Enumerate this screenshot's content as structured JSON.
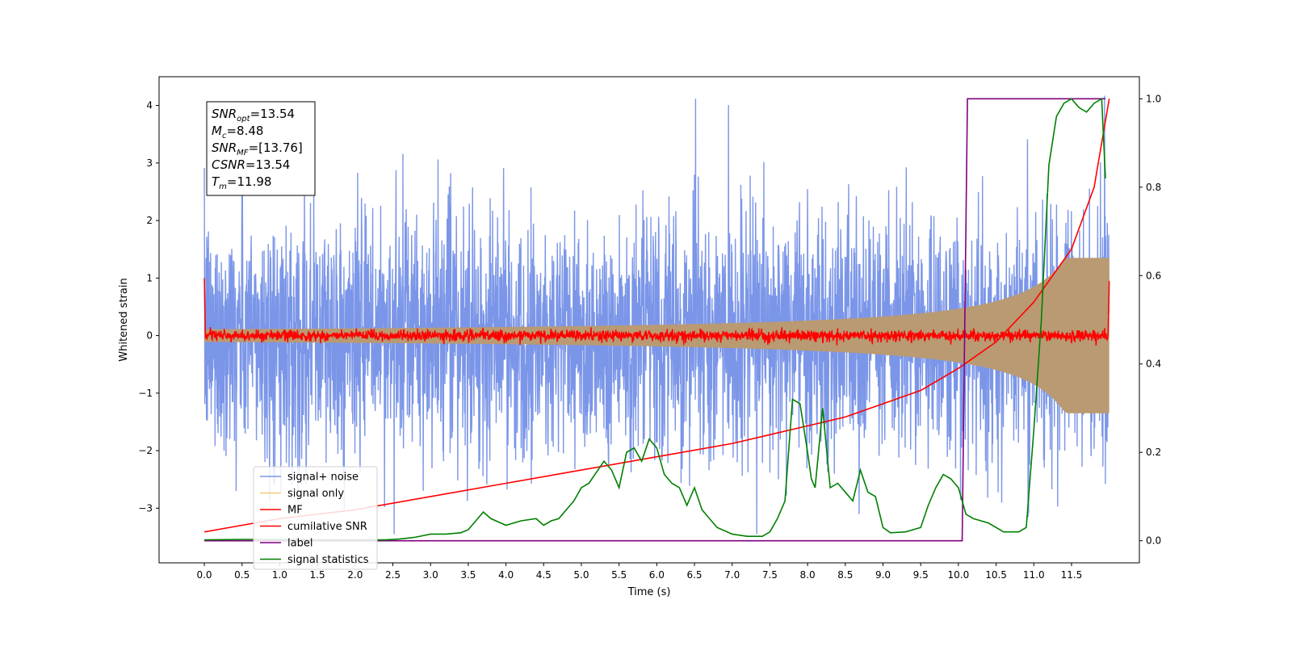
{
  "chart_data": {
    "type": "line",
    "title": "",
    "xlabel": "Time (s)",
    "ylabel": "Whitened strain",
    "y2label": "",
    "xlim": [
      -0.6,
      12.4
    ],
    "ylim": [
      -3.95,
      4.5
    ],
    "y2lim": [
      -0.05,
      1.05
    ],
    "xticks": [
      "0.0",
      "0.5",
      "1.0",
      "1.5",
      "2.0",
      "2.5",
      "3.0",
      "3.5",
      "4.0",
      "4.5",
      "5.0",
      "5.5",
      "6.0",
      "6.5",
      "7.0",
      "7.5",
      "8.0",
      "8.5",
      "9.0",
      "9.5",
      "10.0",
      "10.5",
      "11.0",
      "11.5"
    ],
    "yticks": [
      "4",
      "3",
      "2",
      "1",
      "0",
      "−1",
      "−2",
      "−3"
    ],
    "y2ticks": [
      "1.0",
      "0.8",
      "0.6",
      "0.4",
      "0.2",
      "0.0"
    ],
    "grid": false,
    "legend_position": "lower-left",
    "annotation": {
      "lines": [
        {
          "sym": "SNR",
          "sub": "opt",
          "value": "=13.54"
        },
        {
          "sym": "M",
          "sub": "c",
          "value": "=8.48"
        },
        {
          "sym": "SNR",
          "sub": "MF",
          "value": "=[13.76]"
        },
        {
          "sym": "CSNR",
          "sub": "",
          "value": "=13.54"
        },
        {
          "sym": "T",
          "sub": "m",
          "value": "=11.98"
        }
      ]
    },
    "series": [
      {
        "name": "signal+ noise",
        "axis": "left",
        "color": "#7b96e8",
        "kind": "noise",
        "t_range": [
          0.0,
          12.0
        ],
        "envelope_typical": 2.2,
        "peak_max": 4.17,
        "peak_min": -3.45
      },
      {
        "name": "signal only",
        "axis": "left",
        "color": "#f5c77a",
        "kind": "chirp",
        "t_range": [
          0.0,
          12.0
        ],
        "amplitude_start": 0.02,
        "amplitude_end": 1.35
      },
      {
        "name": "MF",
        "axis": "left",
        "color": "#ff0000",
        "kind": "mf",
        "t_range": [
          0.0,
          12.0
        ],
        "start_value": 1.0,
        "end_value": 0.95,
        "noise_amplitude": 0.08
      },
      {
        "name": "cumilative SNR",
        "axis": "right",
        "color": "#ff0000",
        "kind": "line",
        "x": [
          0.0,
          1.0,
          2.0,
          3.0,
          4.0,
          5.0,
          6.0,
          7.0,
          7.5,
          8.0,
          8.5,
          9.0,
          9.5,
          10.0,
          10.5,
          11.0,
          11.5,
          11.8,
          12.0
        ],
        "y": [
          0.02,
          0.05,
          0.07,
          0.1,
          0.13,
          0.16,
          0.19,
          0.22,
          0.24,
          0.26,
          0.28,
          0.31,
          0.34,
          0.39,
          0.45,
          0.54,
          0.66,
          0.8,
          1.0
        ]
      },
      {
        "name": "label",
        "axis": "right",
        "color": "#800080",
        "kind": "line",
        "x": [
          0.0,
          10.05,
          10.12,
          11.95
        ],
        "y": [
          0.0,
          0.0,
          1.0,
          1.0
        ]
      },
      {
        "name": "signal statistics",
        "axis": "right",
        "color": "#008000",
        "kind": "line",
        "x": [
          0.0,
          0.5,
          1.0,
          1.5,
          2.0,
          2.4,
          2.6,
          2.8,
          3.0,
          3.2,
          3.4,
          3.5,
          3.6,
          3.7,
          3.8,
          4.0,
          4.2,
          4.4,
          4.5,
          4.6,
          4.7,
          4.9,
          5.0,
          5.1,
          5.3,
          5.4,
          5.5,
          5.6,
          5.7,
          5.8,
          5.9,
          6.0,
          6.1,
          6.2,
          6.3,
          6.4,
          6.5,
          6.6,
          6.8,
          7.0,
          7.2,
          7.4,
          7.5,
          7.6,
          7.7,
          7.8,
          7.9,
          8.0,
          8.05,
          8.1,
          8.2,
          8.3,
          8.4,
          8.5,
          8.6,
          8.7,
          8.8,
          8.9,
          9.0,
          9.1,
          9.3,
          9.5,
          9.6,
          9.7,
          9.8,
          9.9,
          10.0,
          10.1,
          10.2,
          10.4,
          10.6,
          10.8,
          10.9,
          11.0,
          11.1,
          11.2,
          11.3,
          11.4,
          11.5,
          11.6,
          11.7,
          11.8,
          11.9,
          11.95
        ],
        "y": [
          0.002,
          0.003,
          0.003,
          0.002,
          0.002,
          0.002,
          0.004,
          0.008,
          0.015,
          0.015,
          0.018,
          0.025,
          0.045,
          0.065,
          0.05,
          0.035,
          0.045,
          0.05,
          0.035,
          0.045,
          0.05,
          0.09,
          0.12,
          0.13,
          0.18,
          0.16,
          0.12,
          0.2,
          0.21,
          0.18,
          0.23,
          0.21,
          0.15,
          0.13,
          0.12,
          0.08,
          0.12,
          0.07,
          0.03,
          0.015,
          0.01,
          0.01,
          0.02,
          0.05,
          0.09,
          0.32,
          0.31,
          0.2,
          0.14,
          0.12,
          0.3,
          0.12,
          0.13,
          0.11,
          0.09,
          0.16,
          0.11,
          0.1,
          0.03,
          0.018,
          0.02,
          0.03,
          0.08,
          0.12,
          0.15,
          0.14,
          0.12,
          0.06,
          0.05,
          0.04,
          0.02,
          0.02,
          0.03,
          0.25,
          0.5,
          0.85,
          0.96,
          0.99,
          1.0,
          0.98,
          0.97,
          0.99,
          1.0,
          0.82
        ]
      }
    ]
  }
}
